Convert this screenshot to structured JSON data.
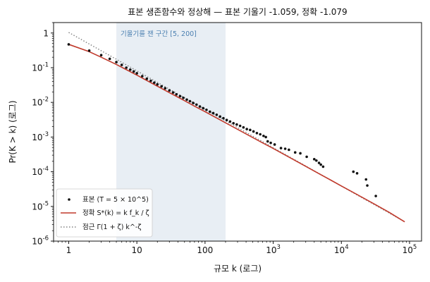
{
  "chart_data": {
    "type": "scatter",
    "title": "표본 생존함수와 정상해 — 표본 기울기 -1.059, 정확 -1.079",
    "xlabel": "규모 k (로그)",
    "ylabel": "Pr(K > k) (로그)",
    "x_scale": "log",
    "y_scale": "log",
    "xlim": [
      0.6,
      150000
    ],
    "ylim": [
      1e-06,
      2
    ],
    "grid": false,
    "legend_position": "bottom-left",
    "x_ticks": [
      {
        "value": 1,
        "label": "1"
      },
      {
        "value": 10,
        "label": "10"
      },
      {
        "value": 100,
        "label": "100"
      },
      {
        "value": 1000,
        "label": "10^3"
      },
      {
        "value": 10000,
        "label": "10^4"
      },
      {
        "value": 100000,
        "label": "10^5"
      }
    ],
    "y_ticks": [
      {
        "value": 1,
        "label": "1"
      },
      {
        "value": 0.1,
        "label": "10^-1"
      },
      {
        "value": 0.01,
        "label": "10^-2"
      },
      {
        "value": 0.001,
        "label": "10^-3"
      },
      {
        "value": 0.0001,
        "label": "10^-4"
      },
      {
        "value": 1e-05,
        "label": "10^-5"
      },
      {
        "value": 1e-06,
        "label": "10^-6"
      }
    ],
    "band": {
      "x_from": 5,
      "x_to": 200,
      "label": "기울기를 잰 구간 [5, 200]",
      "color": "#e8eef4"
    },
    "series": [
      {
        "name": "표본 (T = 5 × 10^5)",
        "kind": "scatter",
        "color": "#111111",
        "points": [
          [
            1,
            0.47
          ],
          [
            2,
            0.31
          ],
          [
            3,
            0.23
          ],
          [
            4,
            0.18
          ],
          [
            5,
            0.145
          ],
          [
            6,
            0.12
          ],
          [
            7,
            0.1
          ],
          [
            8,
            0.088
          ],
          [
            9,
            0.078
          ],
          [
            10,
            0.069
          ],
          [
            12,
            0.057
          ],
          [
            14,
            0.048
          ],
          [
            16,
            0.042
          ],
          [
            18,
            0.037
          ],
          [
            20,
            0.033
          ],
          [
            23,
            0.029
          ],
          [
            26,
            0.0255
          ],
          [
            30,
            0.022
          ],
          [
            34,
            0.0193
          ],
          [
            38,
            0.0171
          ],
          [
            43,
            0.0151
          ],
          [
            48,
            0.0135
          ],
          [
            54,
            0.012
          ],
          [
            60,
            0.0108
          ],
          [
            67,
            0.0096
          ],
          [
            75,
            0.0086
          ],
          [
            84,
            0.0076
          ],
          [
            94,
            0.0068
          ],
          [
            105,
            0.0061
          ],
          [
            118,
            0.0054
          ],
          [
            132,
            0.0049
          ],
          [
            148,
            0.0044
          ],
          [
            166,
            0.0039
          ],
          [
            186,
            0.0035
          ],
          [
            208,
            0.0031
          ],
          [
            233,
            0.0028
          ],
          [
            261,
            0.0025
          ],
          [
            292,
            0.0023
          ],
          [
            327,
            0.0021
          ],
          [
            366,
            0.0019
          ],
          [
            410,
            0.0017
          ],
          [
            459,
            0.0016
          ],
          [
            514,
            0.00145
          ],
          [
            576,
            0.0013
          ],
          [
            645,
            0.0012
          ],
          [
            722,
            0.00108
          ],
          [
            780,
            0.001
          ],
          [
            830,
            0.00075
          ],
          [
            920,
            0.00068
          ],
          [
            1050,
            0.00061
          ],
          [
            1300,
            0.00048
          ],
          [
            1500,
            0.00046
          ],
          [
            1700,
            0.00043
          ],
          [
            2100,
            0.00036
          ],
          [
            2500,
            0.00034
          ],
          [
            3100,
            0.00027
          ],
          [
            4000,
            0.00023
          ],
          [
            4300,
            0.00021
          ],
          [
            4700,
            0.00018
          ],
          [
            5000,
            0.00016
          ],
          [
            5400,
            0.00014
          ],
          [
            15000,
            0.0001
          ],
          [
            17000,
            9e-05
          ],
          [
            23000,
            6e-05
          ],
          [
            24000,
            4e-05
          ],
          [
            32000,
            2e-05
          ]
        ]
      },
      {
        "name": "정확 S*(k) = k f_k / ζ",
        "kind": "line",
        "color": "#c0392b",
        "points": [
          [
            1,
            0.47
          ],
          [
            2,
            0.29
          ],
          [
            3,
            0.2
          ],
          [
            5,
            0.124
          ],
          [
            7,
            0.088
          ],
          [
            10,
            0.061
          ],
          [
            20,
            0.0293
          ],
          [
            30,
            0.0191
          ],
          [
            50,
            0.0112
          ],
          [
            70,
            0.0078
          ],
          [
            100,
            0.0054
          ],
          [
            200,
            0.00258
          ],
          [
            300,
            0.00167
          ],
          [
            500,
            0.00097
          ],
          [
            700,
            0.00068
          ],
          [
            1000,
            0.00047
          ],
          [
            2000,
            0.000222
          ],
          [
            3000,
            0.000143
          ],
          [
            5000,
            8.23e-05
          ],
          [
            7000,
            5.73e-05
          ],
          [
            10000,
            3.89e-05
          ],
          [
            20000,
            1.85e-05
          ],
          [
            30000,
            1.19e-05
          ],
          [
            50000,
            6.8e-06
          ],
          [
            85000,
            3.6e-06
          ]
        ]
      },
      {
        "name": "점근 Γ(1 + ζ) k^-ζ",
        "kind": "dotted",
        "color": "#808080",
        "points": [
          [
            1,
            1.04
          ],
          [
            85000,
            3.6e-06
          ]
        ]
      }
    ]
  }
}
